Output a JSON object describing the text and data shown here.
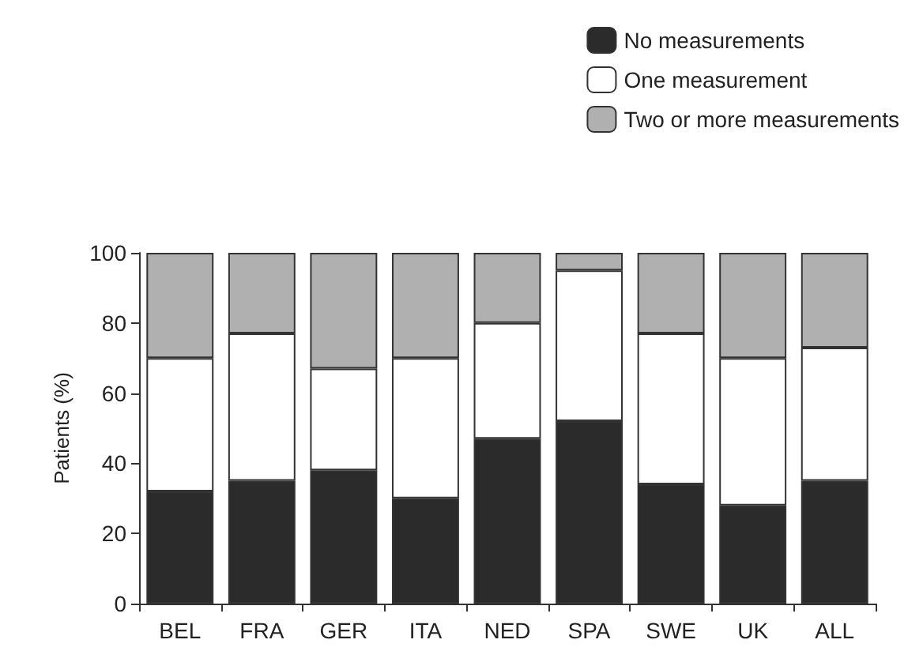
{
  "chart_data": {
    "type": "bar",
    "ylabel": "Patients (%)",
    "categories": [
      "BEL",
      "FRA",
      "GER",
      "ITA",
      "NED",
      "SPA",
      "SWE",
      "UK",
      "ALL"
    ],
    "series": [
      {
        "name": "No measurements",
        "color": "#2b2b2b",
        "values": [
          32,
          35,
          38,
          30,
          47,
          52,
          34,
          28,
          35
        ]
      },
      {
        "name": "One measurement",
        "color": "#ffffff",
        "values": [
          38,
          42,
          29,
          40,
          33,
          43,
          43,
          42,
          38
        ]
      },
      {
        "name": "Two or more measurements",
        "color": "#b0b0b0",
        "values": [
          30,
          23,
          33,
          30,
          20,
          5,
          23,
          30,
          27
        ]
      }
    ],
    "stacked": true,
    "ylim": [
      0,
      100
    ],
    "yticks": [
      0,
      20,
      40,
      60,
      80,
      100
    ],
    "grid": false,
    "legend": "top right"
  }
}
